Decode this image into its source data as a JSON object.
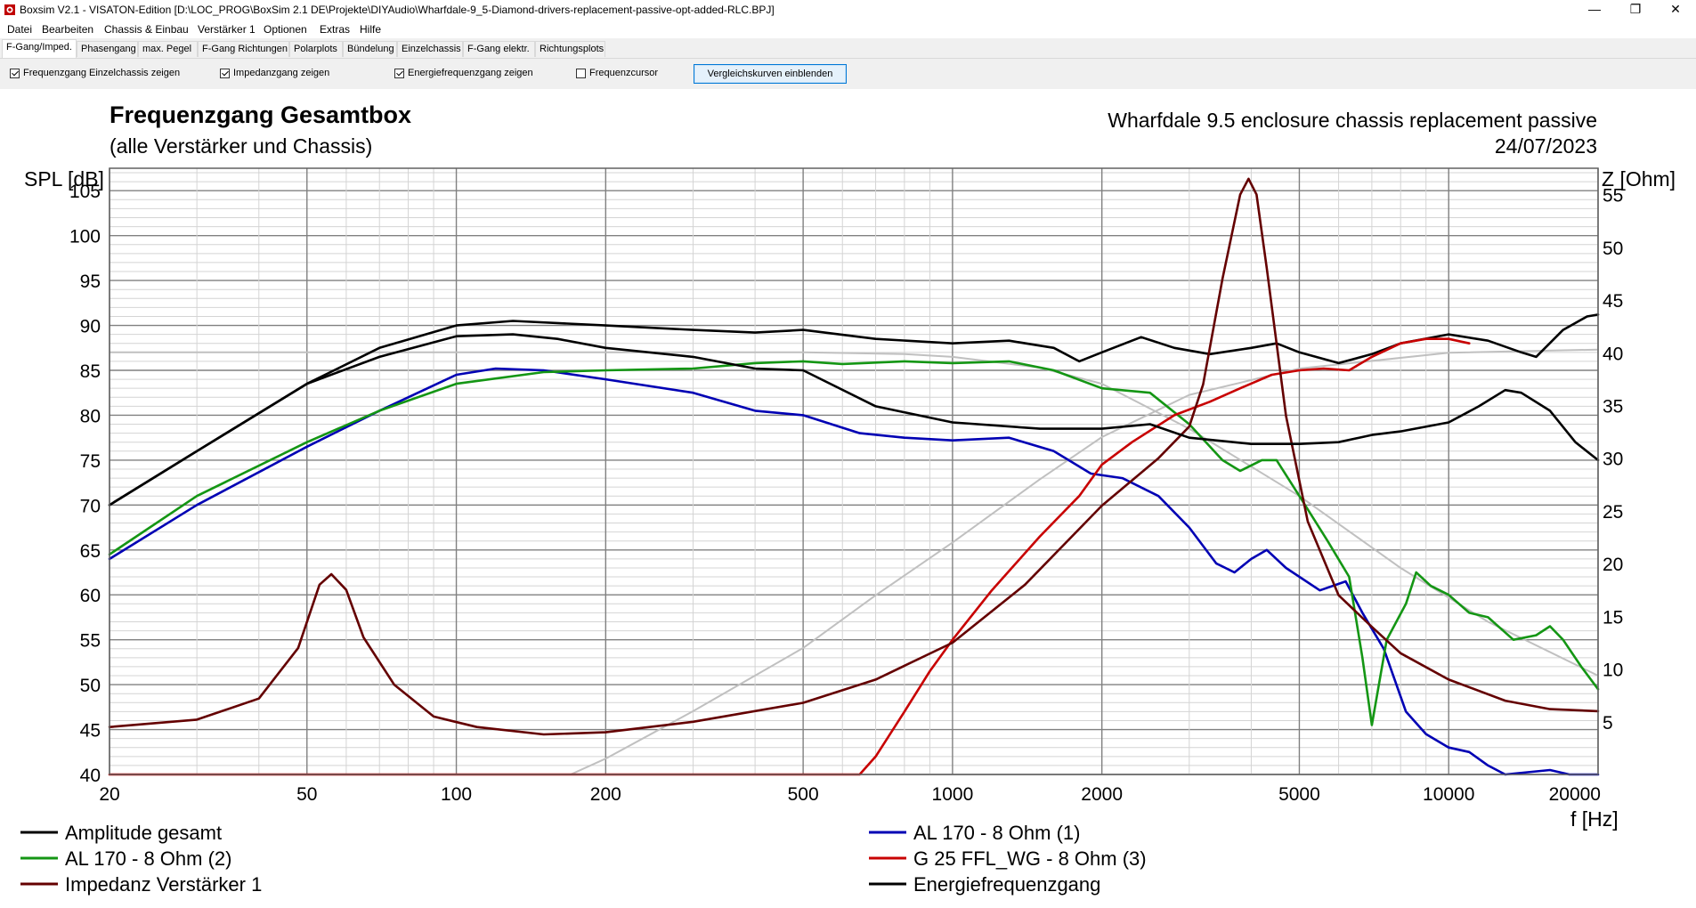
{
  "window": {
    "title": "Boxsim V2.1 - VISATON-Edition [D:\\LOC_PROG\\BoxSim 2.1 DE\\Projekte\\DIYAudio\\Wharfdale-9_5-Diamond-drivers-replacement-passive-opt-added-RLC.BPJ]",
    "minimize": "—",
    "restore": "❐",
    "close": "✕"
  },
  "menu": [
    "Datei",
    "Bearbeiten",
    "Chassis & Einbau",
    "Verstärker 1",
    "Optionen",
    "Extras",
    "Hilfe"
  ],
  "tabs": [
    "F-Gang/Imped.",
    "Phasengang",
    "max. Pegel",
    "F-Gang Richtungen",
    "Polarplots",
    "Bündelung",
    "Einzelchassis",
    "F-Gang elektr.",
    "Richtungsplots"
  ],
  "options": {
    "checkboxes": [
      {
        "label": "Frequenzgang Einzelchassis zeigen",
        "checked": true
      },
      {
        "label": "Impedanzgang zeigen",
        "checked": true
      },
      {
        "label": "Energiefrequenzgang zeigen",
        "checked": true
      },
      {
        "label": "Frequenzcursor",
        "checked": false
      }
    ],
    "compare_button": "Vergleichskurven einblenden"
  },
  "chart_data": {
    "type": "line",
    "title": "Frequenzgang Gesamtbox",
    "subtitle": "(alle Verstärker und Chassis)",
    "project": "Wharfdale 9.5 enclosure chassis replacement passive",
    "date": "24/07/2023",
    "ylabel_left": "SPL [dB]",
    "ylabel_right": "Z [Ohm]",
    "xlabel": "f [Hz]",
    "x_scale": "log",
    "xlim": [
      20,
      20000
    ],
    "ylim_left": [
      40,
      107.5
    ],
    "ylim_right": [
      0,
      57.5
    ],
    "grid": true,
    "x_tick_labels": [
      "20",
      "50",
      "100",
      "200",
      "500",
      "1000",
      "2000",
      "5000",
      "10000",
      "20000"
    ],
    "x_ticks": [
      20,
      50,
      100,
      200,
      500,
      1000,
      2000,
      5000,
      10000,
      20000
    ],
    "y_left_ticks": [
      "105",
      "100",
      "95",
      "90",
      "85",
      "80",
      "75",
      "70",
      "65",
      "60",
      "55",
      "50",
      "45",
      "40"
    ],
    "y_right_ticks": [
      "55",
      "50",
      "45",
      "40",
      "35",
      "30",
      "25",
      "20",
      "15",
      "10",
      "5"
    ],
    "legend": [
      {
        "name": "Amplitude gesamt",
        "color": "#000000"
      },
      {
        "name": "AL 170 - 8 Ohm (1)",
        "color": "#0000b4"
      },
      {
        "name": "AL 170 - 8 Ohm (2)",
        "color": "#149614"
      },
      {
        "name": "G 25 FFL_WG - 8 Ohm (3)",
        "color": "#c80000"
      },
      {
        "name": "Impedanz Verstärker 1",
        "color": "#640000"
      },
      {
        "name": "Energiefrequenzgang",
        "color": "#000000"
      }
    ],
    "series": [
      {
        "name": "Amplitude gesamt",
        "color": "#000000",
        "axis": "left",
        "points": [
          [
            20,
            70
          ],
          [
            30,
            76
          ],
          [
            50,
            83.5
          ],
          [
            70,
            87.5
          ],
          [
            100,
            90
          ],
          [
            130,
            90.5
          ],
          [
            200,
            90
          ],
          [
            300,
            89.5
          ],
          [
            400,
            89.2
          ],
          [
            500,
            89.5
          ],
          [
            700,
            88.5
          ],
          [
            1000,
            88
          ],
          [
            1300,
            88.3
          ],
          [
            1600,
            87.5
          ],
          [
            1800,
            86
          ],
          [
            2000,
            87
          ],
          [
            2400,
            88.7
          ],
          [
            2800,
            87.5
          ],
          [
            3300,
            86.8
          ],
          [
            4000,
            87.5
          ],
          [
            4500,
            88
          ],
          [
            5000,
            87
          ],
          [
            6000,
            85.8
          ],
          [
            7000,
            86.8
          ],
          [
            8000,
            88
          ],
          [
            10000,
            89
          ],
          [
            12000,
            88.3
          ],
          [
            14000,
            87
          ],
          [
            15000,
            86.5
          ],
          [
            17000,
            89.5
          ],
          [
            19000,
            91
          ],
          [
            20000,
            91.2
          ]
        ]
      },
      {
        "name": "AL 170 - 8 Ohm (1)",
        "color": "#0000b4",
        "axis": "left",
        "points": [
          [
            20,
            64
          ],
          [
            30,
            70
          ],
          [
            50,
            76.5
          ],
          [
            70,
            80.5
          ],
          [
            100,
            84.5
          ],
          [
            120,
            85.2
          ],
          [
            150,
            85
          ],
          [
            200,
            84
          ],
          [
            300,
            82.5
          ],
          [
            400,
            80.5
          ],
          [
            500,
            80
          ],
          [
            650,
            78
          ],
          [
            800,
            77.5
          ],
          [
            1000,
            77.2
          ],
          [
            1300,
            77.5
          ],
          [
            1600,
            76
          ],
          [
            1900,
            73.5
          ],
          [
            2200,
            73
          ],
          [
            2600,
            71
          ],
          [
            3000,
            67.5
          ],
          [
            3400,
            63.5
          ],
          [
            3700,
            62.5
          ],
          [
            4000,
            64
          ],
          [
            4300,
            65
          ],
          [
            4700,
            63
          ],
          [
            5500,
            60.5
          ],
          [
            6200,
            61.5
          ],
          [
            6700,
            58
          ],
          [
            7400,
            54
          ],
          [
            8200,
            47
          ],
          [
            9000,
            44.5
          ],
          [
            10000,
            43
          ],
          [
            11000,
            42.5
          ],
          [
            12000,
            41
          ],
          [
            13000,
            40
          ],
          [
            16000,
            40.5
          ],
          [
            17500,
            40
          ],
          [
            20000,
            40
          ]
        ]
      },
      {
        "name": "AL 170 - 8 Ohm (2)",
        "color": "#149614",
        "axis": "left",
        "points": [
          [
            20,
            64.5
          ],
          [
            30,
            71
          ],
          [
            50,
            77
          ],
          [
            70,
            80.5
          ],
          [
            100,
            83.5
          ],
          [
            150,
            84.8
          ],
          [
            200,
            85
          ],
          [
            300,
            85.2
          ],
          [
            400,
            85.8
          ],
          [
            500,
            86
          ],
          [
            600,
            85.7
          ],
          [
            800,
            86
          ],
          [
            1000,
            85.8
          ],
          [
            1300,
            86
          ],
          [
            1600,
            85
          ],
          [
            2000,
            83
          ],
          [
            2500,
            82.5
          ],
          [
            3000,
            79
          ],
          [
            3500,
            75
          ],
          [
            3800,
            73.8
          ],
          [
            4200,
            75
          ],
          [
            4500,
            75
          ],
          [
            5000,
            71
          ],
          [
            5700,
            66
          ],
          [
            6300,
            62
          ],
          [
            6700,
            53
          ],
          [
            7000,
            45.5
          ],
          [
            7500,
            55
          ],
          [
            8200,
            59
          ],
          [
            8600,
            62.5
          ],
          [
            9200,
            61
          ],
          [
            10000,
            60
          ],
          [
            11000,
            58
          ],
          [
            12000,
            57.5
          ],
          [
            13500,
            55
          ],
          [
            15000,
            55.5
          ],
          [
            16000,
            56.5
          ],
          [
            17000,
            55
          ],
          [
            18500,
            52
          ],
          [
            20000,
            49.5
          ]
        ]
      },
      {
        "name": "G 25 FFL_WG - 8 Ohm (3)",
        "color": "#c80000",
        "axis": "left",
        "points": [
          [
            20,
            40
          ],
          [
            200,
            40
          ],
          [
            500,
            40
          ],
          [
            650,
            40
          ],
          [
            700,
            42
          ],
          [
            800,
            47
          ],
          [
            900,
            51.5
          ],
          [
            1000,
            55
          ],
          [
            1200,
            60.5
          ],
          [
            1500,
            66.5
          ],
          [
            1800,
            71
          ],
          [
            2000,
            74.5
          ],
          [
            2300,
            77
          ],
          [
            2800,
            80
          ],
          [
            3300,
            81.5
          ],
          [
            3800,
            83
          ],
          [
            4400,
            84.5
          ],
          [
            5000,
            85
          ],
          [
            5600,
            85.2
          ],
          [
            6300,
            85
          ],
          [
            7000,
            86.5
          ],
          [
            8000,
            88
          ],
          [
            9000,
            88.5
          ],
          [
            10000,
            88.5
          ],
          [
            11000,
            88
          ]
        ]
      },
      {
        "name": "Impedanz Verstärker 1",
        "color": "#640000",
        "axis": "right",
        "points": [
          [
            20,
            4.5
          ],
          [
            30,
            5.2
          ],
          [
            40,
            7.2
          ],
          [
            48,
            12
          ],
          [
            53,
            18
          ],
          [
            56,
            19
          ],
          [
            60,
            17.5
          ],
          [
            65,
            13
          ],
          [
            75,
            8.5
          ],
          [
            90,
            5.5
          ],
          [
            110,
            4.5
          ],
          [
            150,
            3.8
          ],
          [
            200,
            4
          ],
          [
            300,
            5
          ],
          [
            500,
            6.8
          ],
          [
            700,
            9
          ],
          [
            1000,
            12.5
          ],
          [
            1400,
            18
          ],
          [
            2000,
            25.5
          ],
          [
            2600,
            30
          ],
          [
            3000,
            33
          ],
          [
            3200,
            37
          ],
          [
            3500,
            47
          ],
          [
            3800,
            55
          ],
          [
            3950,
            56.5
          ],
          [
            4100,
            55
          ],
          [
            4300,
            48
          ],
          [
            4700,
            34
          ],
          [
            5200,
            24
          ],
          [
            6000,
            17
          ],
          [
            7000,
            14
          ],
          [
            8000,
            11.5
          ],
          [
            10000,
            9
          ],
          [
            13000,
            7
          ],
          [
            16000,
            6.2
          ],
          [
            20000,
            6
          ]
        ]
      },
      {
        "name": "Energiefrequenzgang",
        "color": "#000000",
        "axis": "left",
        "points": [
          [
            20,
            70
          ],
          [
            30,
            76
          ],
          [
            50,
            83.5
          ],
          [
            70,
            86.5
          ],
          [
            100,
            88.8
          ],
          [
            130,
            89
          ],
          [
            160,
            88.5
          ],
          [
            200,
            87.5
          ],
          [
            300,
            86.5
          ],
          [
            400,
            85.2
          ],
          [
            500,
            85
          ],
          [
            700,
            81
          ],
          [
            1000,
            79.2
          ],
          [
            1500,
            78.5
          ],
          [
            2000,
            78.5
          ],
          [
            2500,
            79
          ],
          [
            3000,
            77.5
          ],
          [
            4000,
            76.8
          ],
          [
            5000,
            76.8
          ],
          [
            6000,
            77
          ],
          [
            7000,
            77.8
          ],
          [
            8000,
            78.2
          ],
          [
            10000,
            79.2
          ],
          [
            11500,
            81
          ],
          [
            13000,
            82.8
          ],
          [
            14000,
            82.5
          ],
          [
            16000,
            80.5
          ],
          [
            18000,
            77
          ],
          [
            20000,
            75
          ]
        ]
      },
      {
        "name": "",
        "color": "#c0c0c0",
        "axis": "right",
        "points": [
          [
            170,
            0
          ],
          [
            200,
            1.5
          ],
          [
            300,
            6
          ],
          [
            500,
            12
          ],
          [
            700,
            17
          ],
          [
            1000,
            22
          ],
          [
            1500,
            28
          ],
          [
            2000,
            32
          ],
          [
            3000,
            36
          ],
          [
            5000,
            38.5
          ],
          [
            10000,
            40
          ],
          [
            20000,
            40.3
          ]
        ]
      },
      {
        "name": "",
        "color": "#c0c0c0",
        "axis": "left",
        "points": [
          [
            20,
            87
          ],
          [
            100,
            87
          ],
          [
            200,
            87
          ],
          [
            500,
            87
          ],
          [
            800,
            86.8
          ],
          [
            1000,
            86.5
          ],
          [
            1500,
            85.3
          ],
          [
            2000,
            83.5
          ],
          [
            3000,
            78.5
          ],
          [
            5000,
            71
          ],
          [
            8000,
            63
          ],
          [
            12000,
            57
          ],
          [
            20000,
            51
          ]
        ]
      }
    ]
  }
}
